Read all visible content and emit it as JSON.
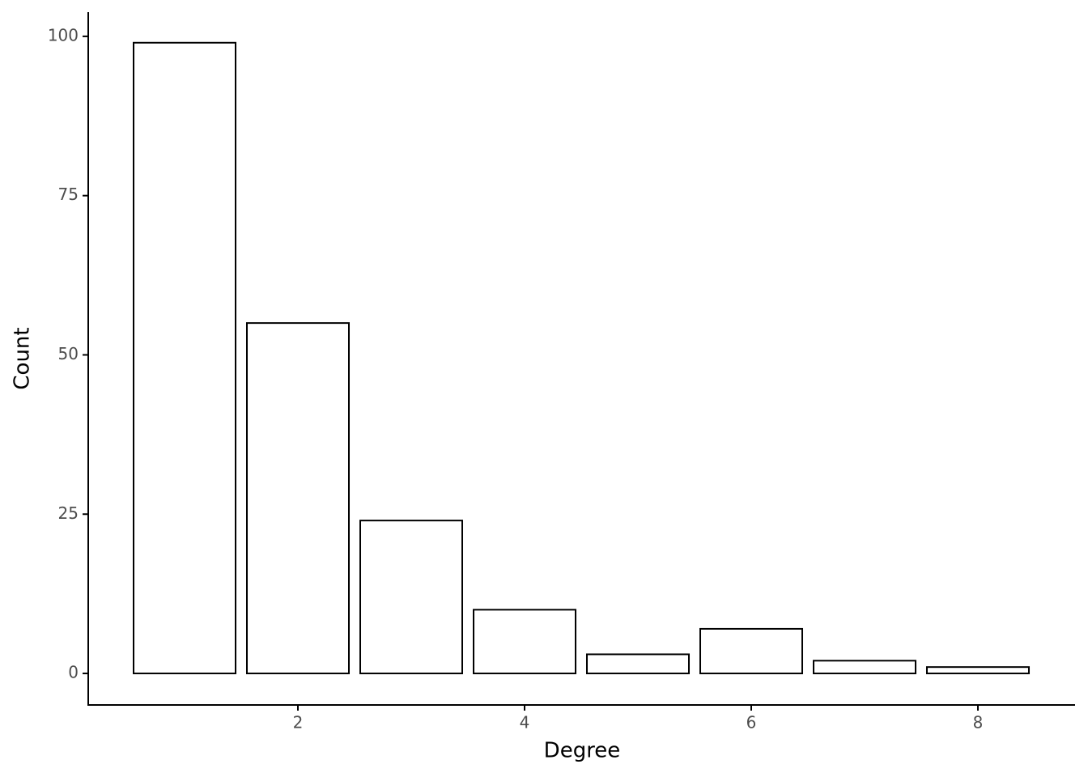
{
  "chart_data": {
    "type": "bar",
    "x_label": "Degree",
    "y_label": "Count",
    "x": [
      1,
      2,
      3,
      4,
      5,
      6,
      7,
      8
    ],
    "values": [
      99,
      55,
      24,
      10,
      3,
      7,
      2,
      1
    ],
    "color": "#ffffff",
    "edge_color": "#000000",
    "xlim": [
      0.15,
      8.857
    ],
    "xticks": [
      2,
      4,
      6,
      8
    ],
    "ylim": [
      -4.95,
      103.8
    ],
    "yticks": [
      0,
      25,
      50,
      75,
      100
    ],
    "grid": false
  }
}
